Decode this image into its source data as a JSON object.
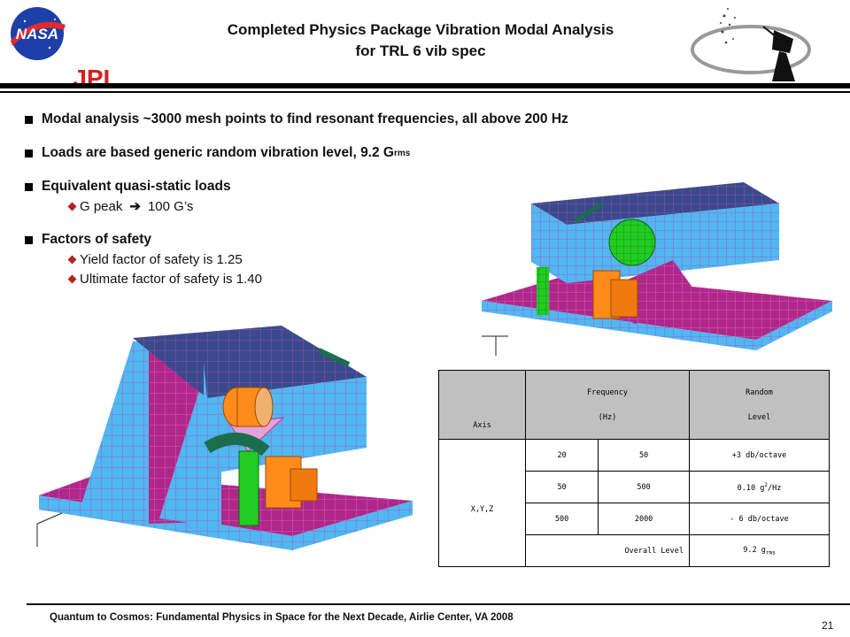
{
  "header": {
    "title_line1": "Completed Physics Package Vibration Modal Analysis",
    "title_line2": "for TRL 6 vib spec",
    "logo_nasa": "NASA",
    "logo_jpl": "JPL"
  },
  "bullets": [
    {
      "text": "Modal analysis ~3000 mesh points to find resonant frequencies, all above 200 Hz"
    },
    {
      "text": "Loads are based generic random vibration level, 9.2 G",
      "sub": "rms"
    },
    {
      "text": "Equivalent quasi-static loads",
      "items": [
        "G peak",
        "100 G’s"
      ]
    },
    {
      "text": "Factors of safety",
      "items": [
        "Yield factor of safety is 1.25",
        "Ultimate factor of safety is 1.40"
      ]
    }
  ],
  "table": {
    "headers": {
      "axis": "Axis",
      "freq_top": "Frequency",
      "freq_unit": "(Hz)",
      "random_top": "Random",
      "random_bottom": "Level"
    },
    "axis_value": "X,Y,Z",
    "rows": [
      {
        "from": "20",
        "to": "50",
        "level": "+3 db/octave"
      },
      {
        "from": "50",
        "to": "500",
        "level_pre": "0.10 g",
        "level_sup": "2",
        "level_post": "/Hz"
      },
      {
        "from": "500",
        "to": "2000",
        "level": "- 6 db/octave"
      }
    ],
    "overall_label": "Overall Level",
    "overall_value": "9.2 g",
    "overall_sub": "rms"
  },
  "footer": {
    "text": "Quantum to Cosmos: Fundamental Physics in Space for the Next Decade, Airlie Center, VA 2008",
    "page": "21"
  },
  "colors": {
    "mesh_blue": "#4fb8f0",
    "mesh_line": "#c040c0",
    "top_navy": "#3a4a8a",
    "green": "#22cc22",
    "orange": "#ff8c1a"
  }
}
